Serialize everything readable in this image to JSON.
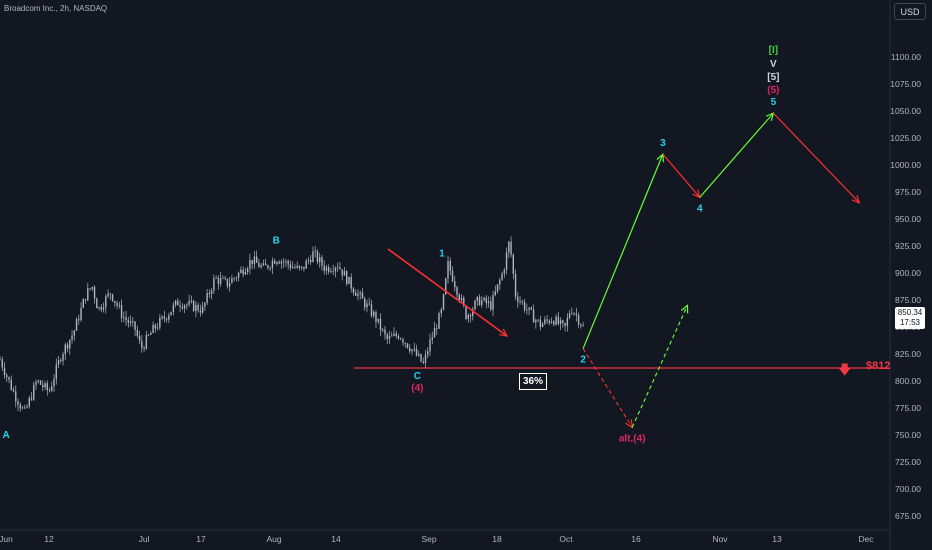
{
  "header": {
    "title": "Broadcom Inc., 2h, NASDAQ",
    "currency": "USD"
  },
  "price_tag": {
    "price": "850.34",
    "countdown": "17:53"
  },
  "target": {
    "label": "$812",
    "icon": "arrow-down-icon"
  },
  "probability_box": "36%",
  "colors": {
    "background": "#131722",
    "candles": "#b2b5be",
    "support_line": "#f23645",
    "up_arrow": "#66ff33",
    "down_arrow": "#ff3030",
    "wave_cyan": "#22d3ee",
    "wave_red": "#e0245e",
    "wave_green": "#3ed13e"
  },
  "chart_data": {
    "type": "line",
    "title": "Broadcom Inc., 2h, NASDAQ",
    "xlabel": "",
    "ylabel": "",
    "ylim": [
      660,
      1125
    ],
    "x_ticks": [
      "Jun",
      "12",
      "Jul",
      "17",
      "Aug",
      "14",
      "Sep",
      "18",
      "Oct",
      "16",
      "Nov",
      "13",
      "Dec"
    ],
    "y_ticks": [
      675,
      700,
      725,
      750,
      775,
      800,
      825,
      850,
      875,
      900,
      925,
      950,
      975,
      1000,
      1025,
      1050,
      1075,
      1100
    ],
    "price_series": {
      "name": "",
      "points": [
        [
          0,
          820
        ],
        [
          2,
          792
        ],
        [
          4,
          770
        ],
        [
          6,
          800
        ],
        [
          8,
          790
        ],
        [
          10,
          825
        ],
        [
          12,
          845
        ],
        [
          14,
          880
        ],
        [
          15,
          888
        ],
        [
          16,
          866
        ],
        [
          18,
          882
        ],
        [
          20,
          860
        ],
        [
          22,
          848
        ],
        [
          23,
          830
        ],
        [
          25,
          848
        ],
        [
          27,
          860
        ],
        [
          29,
          873
        ],
        [
          31,
          870
        ],
        [
          33,
          866
        ],
        [
          35,
          895
        ],
        [
          37,
          890
        ],
        [
          39,
          900
        ],
        [
          41,
          912
        ],
        [
          43,
          904
        ],
        [
          45,
          914
        ],
        [
          47,
          908
        ],
        [
          49,
          902
        ],
        [
          51,
          918
        ],
        [
          53,
          904
        ],
        [
          55,
          908
        ],
        [
          57,
          890
        ],
        [
          59,
          875
        ],
        [
          61,
          860
        ],
        [
          63,
          838
        ],
        [
          65,
          843
        ],
        [
          67,
          830
        ],
        [
          69,
          815
        ],
        [
          70,
          835
        ],
        [
          72,
          865
        ],
        [
          73,
          908
        ],
        [
          74,
          892
        ],
        [
          76,
          860
        ],
        [
          78,
          875
        ],
        [
          80,
          870
        ],
        [
          82,
          902
        ],
        [
          83,
          930
        ],
        [
          84,
          880
        ],
        [
          86,
          865
        ],
        [
          88,
          852
        ],
        [
          90,
          858
        ],
        [
          92,
          848
        ],
        [
          93,
          868
        ],
        [
          94,
          860
        ],
        [
          95,
          850
        ]
      ]
    },
    "support_level": 812,
    "projection_primary": [
      [
        95,
        830
      ],
      [
        108,
        1010
      ],
      [
        114,
        970
      ],
      [
        126,
        1048
      ],
      [
        140,
        965
      ]
    ],
    "projection_alternate": [
      [
        95,
        830
      ],
      [
        103,
        757
      ],
      [
        112,
        870
      ]
    ],
    "wave_labels": [
      {
        "text": "A",
        "x": 1,
        "y": 760,
        "color": "cyan",
        "pos": "below"
      },
      {
        "text": "B",
        "x": 45,
        "y": 920,
        "color": "cyan",
        "pos": "above"
      },
      {
        "text": "C",
        "x": 68,
        "y": 815,
        "color": "cyan",
        "pos": "below"
      },
      {
        "text": "(4)",
        "x": 68,
        "y": 815,
        "color": "red",
        "pos": "below2"
      },
      {
        "text": "1",
        "x": 72,
        "y": 908,
        "color": "cyan",
        "pos": "above"
      },
      {
        "text": "2",
        "x": 95,
        "y": 830,
        "color": "cyan",
        "pos": "below"
      },
      {
        "text": "3",
        "x": 108,
        "y": 1010,
        "color": "cyan",
        "pos": "above"
      },
      {
        "text": "4",
        "x": 114,
        "y": 970,
        "color": "cyan",
        "pos": "below"
      },
      {
        "text": "5",
        "x": 126,
        "y": 1048,
        "color": "cyan",
        "pos": "above"
      },
      {
        "text": "(5)",
        "x": 126,
        "y": 1048,
        "color": "red",
        "pos": "above2"
      },
      {
        "text": "[5]",
        "x": 126,
        "y": 1048,
        "color": "white",
        "pos": "above3"
      },
      {
        "text": "V",
        "x": 126,
        "y": 1048,
        "color": "white",
        "pos": "above4"
      },
      {
        "text": "[I]",
        "x": 126,
        "y": 1048,
        "color": "green",
        "pos": "above5"
      },
      {
        "text": "alt.(4)",
        "x": 103,
        "y": 757,
        "color": "red",
        "pos": "below"
      }
    ]
  }
}
